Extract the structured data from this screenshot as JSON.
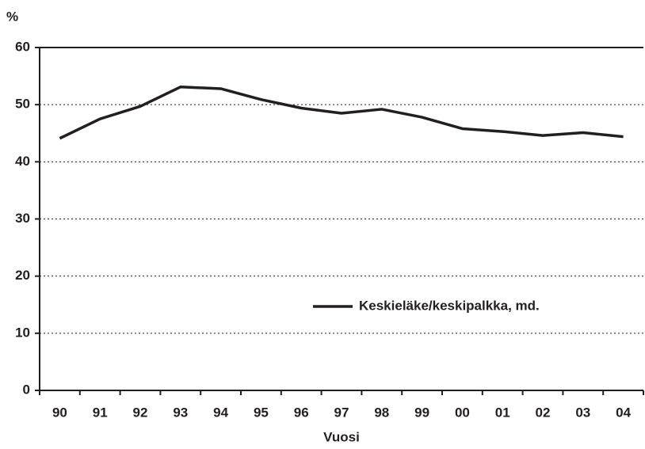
{
  "chart_data": {
    "type": "line",
    "y_label": "%",
    "x_label": "Vuosi",
    "categories": [
      "90",
      "91",
      "92",
      "93",
      "94",
      "95",
      "96",
      "97",
      "98",
      "99",
      "00",
      "01",
      "02",
      "03",
      "04"
    ],
    "series": [
      {
        "name": "Keskieläke/keskipalkka, md.",
        "color": "#231f20",
        "values": [
          44.1,
          47.5,
          49.7,
          53.1,
          52.8,
          50.9,
          49.4,
          48.5,
          49.2,
          47.8,
          45.8,
          45.3,
          44.6,
          45.1,
          44.4
        ]
      }
    ],
    "ylim": [
      0,
      60
    ],
    "yticks": [
      0,
      10,
      20,
      30,
      40,
      50,
      60
    ],
    "grid": true
  }
}
